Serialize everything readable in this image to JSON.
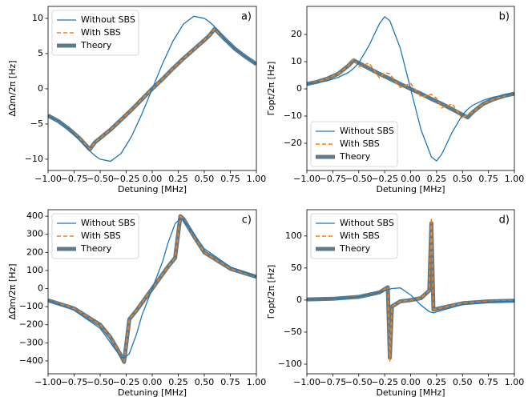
{
  "chart_data": [
    {
      "type": "line",
      "panel_label": "a)",
      "xlabel": "Detuning [MHz]",
      "ylabel": "ΔΩm/2π [Hz]",
      "legend": "upper left",
      "xlim": [
        -1,
        1
      ],
      "xticks": [
        {
          "value": -1,
          "label": "−1.00"
        },
        {
          "value": -0.75,
          "label": "−0.75"
        },
        {
          "value": -0.5,
          "label": "−0.50"
        },
        {
          "value": -0.25,
          "label": "−0.25"
        },
        {
          "value": 0,
          "label": "0.00"
        },
        {
          "value": 0.25,
          "label": "0.25"
        },
        {
          "value": 0.5,
          "label": "0.50"
        },
        {
          "value": 0.75,
          "label": "0.75"
        },
        {
          "value": 1,
          "label": "1.00"
        }
      ],
      "ylim": [
        -11.6,
        11.7
      ],
      "yticks": [
        {
          "value": -10,
          "label": "−10"
        },
        {
          "value": -5,
          "label": "−5"
        },
        0,
        5,
        10
      ],
      "x": [
        -1,
        -0.9,
        -0.8,
        -0.7,
        -0.6,
        -0.55,
        -0.5,
        -0.4,
        -0.3,
        -0.2,
        -0.1,
        0,
        0.1,
        0.2,
        0.3,
        0.4,
        0.5,
        0.55,
        0.6,
        0.7,
        0.8,
        0.9,
        1
      ],
      "series": [
        {
          "name": "Without SBS",
          "color": "#1f77b4",
          "values": [
            -3.8,
            -4.6,
            -5.7,
            -7.2,
            -8.8,
            -9.5,
            -10.0,
            -10.3,
            -9.2,
            -6.8,
            -3.6,
            0,
            3.6,
            6.8,
            9.2,
            10.3,
            10.0,
            9.5,
            8.8,
            7.0,
            5.6,
            4.5,
            3.5
          ]
        },
        {
          "name": "With SBS",
          "color": "#ff7f0e",
          "values": [
            -3.8,
            -4.6,
            -5.7,
            -7.0,
            -8.6,
            -7.6,
            -7.0,
            -5.8,
            -4.4,
            -3.0,
            -1.5,
            0,
            1.4,
            2.9,
            4.3,
            5.6,
            6.9,
            7.6,
            8.5,
            7.0,
            5.6,
            4.5,
            3.5
          ]
        },
        {
          "name": "Theory",
          "color": "#5f7a8a",
          "values": [
            -3.8,
            -4.6,
            -5.7,
            -7.0,
            -8.6,
            -7.6,
            -7.0,
            -5.8,
            -4.4,
            -3.0,
            -1.5,
            0,
            1.4,
            2.9,
            4.3,
            5.6,
            6.9,
            7.6,
            8.5,
            7.0,
            5.6,
            4.5,
            3.5
          ]
        }
      ]
    },
    {
      "type": "line",
      "panel_label": "b)",
      "xlabel": "Detuning [MHz]",
      "ylabel": "Γopt/2π [Hz]",
      "legend": "lower left",
      "xlim": [
        -1,
        1
      ],
      "xticks": [
        {
          "value": -1,
          "label": "−1.00"
        },
        {
          "value": -0.75,
          "label": "−0.75"
        },
        {
          "value": -0.5,
          "label": "−0.50"
        },
        {
          "value": -0.25,
          "label": "−0.25"
        },
        {
          "value": 0,
          "label": "0.00"
        },
        {
          "value": 0.25,
          "label": "0.25"
        },
        {
          "value": 0.5,
          "label": "0.50"
        },
        {
          "value": 0.75,
          "label": "0.75"
        },
        {
          "value": 1,
          "label": "1.00"
        }
      ],
      "ylim": [
        -30,
        30.3
      ],
      "yticks": [
        {
          "value": -20,
          "label": "−20"
        },
        {
          "value": -10,
          "label": "−10"
        },
        0,
        10,
        20
      ],
      "x": [
        -1,
        -0.9,
        -0.8,
        -0.7,
        -0.6,
        -0.55,
        -0.5,
        -0.4,
        -0.3,
        -0.25,
        -0.2,
        -0.1,
        0,
        0.1,
        0.2,
        0.25,
        0.3,
        0.4,
        0.5,
        0.55,
        0.6,
        0.7,
        0.8,
        0.9,
        1
      ],
      "series": [
        {
          "name": "Without SBS",
          "color": "#1f77b4",
          "values": [
            1.8,
            2.3,
            3.0,
            4.2,
            6.0,
            7.5,
            9.5,
            16,
            24,
            26.5,
            25,
            15,
            0,
            -15,
            -25,
            -26.5,
            -24,
            -16,
            -9.5,
            -7.5,
            -6.0,
            -4.2,
            -3.0,
            -2.3,
            -1.8
          ]
        },
        {
          "name": "With SBS",
          "color": "#ff7f0e",
          "values": [
            1.8,
            2.6,
            3.8,
            5.5,
            8.5,
            11,
            8,
            9.5,
            4,
            6,
            5.5,
            0.5,
            2,
            -3,
            -2,
            -3.5,
            -7,
            -5.5,
            -11,
            -9,
            -8.5,
            -5.5,
            -3.8,
            -2.6,
            -1.8
          ]
        },
        {
          "name": "Theory",
          "color": "#5f7a8a",
          "values": [
            1.8,
            2.6,
            3.8,
            5.5,
            8.5,
            10.5,
            9.5,
            7.5,
            5.5,
            4.6,
            3.7,
            1.8,
            0,
            -1.8,
            -3.7,
            -4.6,
            -5.5,
            -7.5,
            -9.5,
            -10.5,
            -8.5,
            -5.5,
            -3.8,
            -2.6,
            -1.8
          ]
        }
      ]
    },
    {
      "type": "line",
      "panel_label": "c)",
      "xlabel": "Detuning [MHz]",
      "ylabel": "ΔΩm/2π [Hz]",
      "legend": "upper left",
      "xlim": [
        -1,
        1
      ],
      "xticks": [
        {
          "value": -1,
          "label": "−1.00"
        },
        {
          "value": -0.75,
          "label": "−0.75"
        },
        {
          "value": -0.5,
          "label": "−0.50"
        },
        {
          "value": -0.25,
          "label": "−0.25"
        },
        {
          "value": 0,
          "label": "0.00"
        },
        {
          "value": 0.25,
          "label": "0.25"
        },
        {
          "value": 0.5,
          "label": "0.50"
        },
        {
          "value": 0.75,
          "label": "0.75"
        },
        {
          "value": 1,
          "label": "1.00"
        }
      ],
      "ylim": [
        -471,
        436
      ],
      "yticks": [
        {
          "value": -400,
          "label": "−400"
        },
        {
          "value": -300,
          "label": "−300"
        },
        {
          "value": -200,
          "label": "−200"
        },
        {
          "value": -100,
          "label": "−100"
        },
        0,
        100,
        200,
        300,
        400
      ],
      "x": [
        -1,
        -0.75,
        -0.5,
        -0.4,
        -0.3,
        -0.27,
        -0.22,
        -0.15,
        -0.1,
        0,
        0.1,
        0.15,
        0.22,
        0.27,
        0.3,
        0.4,
        0.5,
        0.75,
        1
      ],
      "series": [
        {
          "name": "Without SBS",
          "color": "#1f77b4",
          "values": [
            -65,
            -120,
            -220,
            -300,
            -380,
            -385,
            -360,
            -250,
            -150,
            0,
            150,
            250,
            360,
            385,
            380,
            300,
            220,
            120,
            65
          ]
        },
        {
          "name": "With SBS",
          "color": "#ff7f0e",
          "values": [
            -65,
            -110,
            -200,
            -270,
            -370,
            -405,
            -170,
            -120,
            -80,
            0,
            80,
            120,
            170,
            400,
            385,
            290,
            200,
            110,
            65
          ]
        },
        {
          "name": "Theory",
          "color": "#5f7a8a",
          "values": [
            -65,
            -110,
            -200,
            -270,
            -370,
            -405,
            -170,
            -120,
            -80,
            0,
            80,
            120,
            170,
            400,
            385,
            290,
            200,
            110,
            65
          ]
        }
      ]
    },
    {
      "type": "line",
      "panel_label": "d)",
      "xlabel": "Detuning [MHz]",
      "ylabel": "Γopt/2π [Hz]",
      "legend": "upper left",
      "xlim": [
        -1,
        1
      ],
      "xticks": [
        {
          "value": -1,
          "label": "−1.00"
        },
        {
          "value": -0.75,
          "label": "−0.75"
        },
        {
          "value": -0.5,
          "label": "−0.50"
        },
        {
          "value": -0.25,
          "label": "−0.25"
        },
        {
          "value": 0,
          "label": "0.00"
        },
        {
          "value": 0.25,
          "label": "0.25"
        },
        {
          "value": 0.5,
          "label": "0.50"
        },
        {
          "value": 0.75,
          "label": "0.75"
        },
        {
          "value": 1,
          "label": "1.00"
        }
      ],
      "ylim": [
        -115,
        141
      ],
      "yticks": [
        {
          "value": -100,
          "label": "−100"
        },
        {
          "value": -50,
          "label": "−50"
        },
        0,
        50,
        100
      ],
      "x": [
        -1,
        -0.75,
        -0.5,
        -0.3,
        -0.22,
        -0.2,
        -0.18,
        -0.1,
        0,
        0.1,
        0.18,
        0.2,
        0.22,
        0.3,
        0.5,
        0.75,
        1
      ],
      "series": [
        {
          "name": "Without SBS",
          "color": "#1f77b4",
          "values": [
            1,
            2,
            5,
            12,
            16,
            17,
            18,
            19,
            8,
            -8,
            -18,
            -19,
            -20,
            -16,
            -7,
            -3,
            -1.5
          ]
        },
        {
          "name": "With SBS",
          "color": "#ff7f0e",
          "values": [
            1,
            2,
            5,
            12,
            20,
            -95,
            -10,
            -2,
            0,
            3,
            15,
            128,
            -15,
            -12,
            -5,
            -2,
            -1
          ]
        },
        {
          "name": "Theory",
          "color": "#5f7a8a",
          "values": [
            1,
            2,
            5,
            12,
            20,
            -90,
            -10,
            -2,
            0,
            3,
            15,
            120,
            -15,
            -12,
            -5,
            -2,
            -1
          ]
        }
      ]
    }
  ]
}
